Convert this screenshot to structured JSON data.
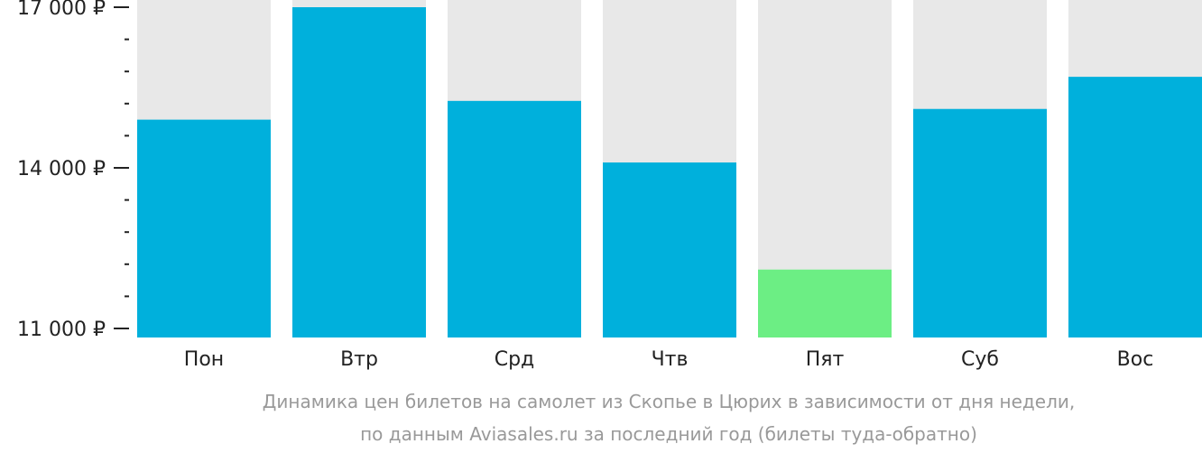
{
  "chart_data": {
    "type": "bar",
    "categories": [
      "Пон",
      "Втр",
      "Срд",
      "Чтв",
      "Пят",
      "Суб",
      "Вос"
    ],
    "values": [
      14900,
      17000,
      15250,
      14100,
      12100,
      15100,
      15700
    ],
    "yticks": [
      {
        "value": 17000,
        "label": "17 000 ₽"
      },
      {
        "value": 14000,
        "label": "14 000 ₽"
      },
      {
        "value": 11000,
        "label": "11 000 ₽"
      }
    ],
    "ylim": [
      11000,
      17200
    ],
    "minor_tick_step": 600,
    "title": "",
    "xlabel": "",
    "ylabel": "",
    "caption_line1": "Динамика цен билетов на самолет из Скопье в Цюрих в зависимости от дня недели,",
    "caption_line2": "по данным Aviasales.ru за последний год (билеты туда-обратно)",
    "colors": {
      "bar": "#00b0dc",
      "highlight_bar": "#6cee84",
      "bar_background": "#e8e8e8",
      "axis": "#222222",
      "caption": "#999999"
    },
    "highlight_index": 4
  }
}
